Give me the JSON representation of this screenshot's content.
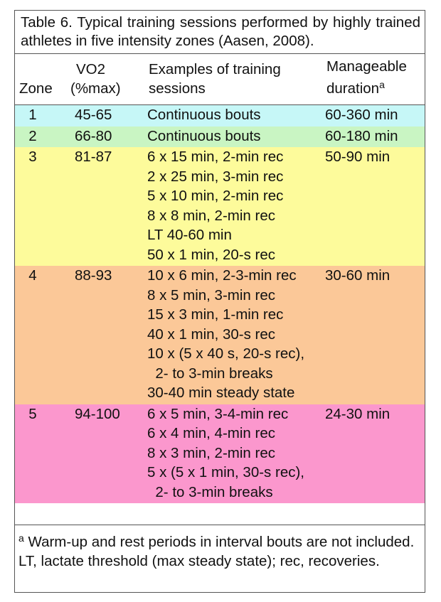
{
  "caption": "Table 6. Typical training sessions performed by highly trained athletes in five intensity zones (Aasen, 2008).",
  "headers": {
    "zone": "Zone",
    "vo2_line1": "VO2",
    "vo2_line2": "(%max)",
    "sessions_line1": "Examples of training",
    "sessions_line2": "sessions",
    "duration_line1": "Manageable",
    "duration_line2": "duration",
    "duration_sup": "a"
  },
  "rows": [
    {
      "zone": "1",
      "vo2": "45-65",
      "color": "#c6f7f7",
      "sessions": [
        "Continuous bouts"
      ],
      "duration": "60-360 min"
    },
    {
      "zone": "2",
      "vo2": "66-80",
      "color": "#c9f5c3",
      "sessions": [
        "Continuous bouts"
      ],
      "duration": "60-180 min"
    },
    {
      "zone": "3",
      "vo2": "81-87",
      "color": "#fdfb9b",
      "sessions": [
        "6 x 15 min, 2-min rec",
        "2 x 25 min, 3-min rec",
        "5 x 10 min, 2-min rec",
        "8 x 8 min, 2-min rec",
        "LT 40-60 min",
        "50 x 1 min, 20-s rec"
      ],
      "duration": "50-90 min"
    },
    {
      "zone": "4",
      "vo2": "88-93",
      "color": "#fbc898",
      "sessions": [
        "10 x 6 min, 2-3-min rec",
        "8 x 5 min, 3-min rec",
        "15 x 3 min, 1-min rec",
        "40 x 1 min, 30-s rec",
        "10 x (5 x 40 s, 20-s rec),",
        "  2- to 3-min breaks",
        "30-40 min steady state"
      ],
      "duration": "30-60 min"
    },
    {
      "zone": "5",
      "vo2": "94-100",
      "color": "#fb97cd",
      "sessions": [
        "6 x 5 min, 3-4-min rec",
        "6 x 4 min, 4-min rec",
        "8 x 3 min, 2-min rec",
        "5 x (5 x 1 min, 30-s rec),",
        "  2- to 3-min breaks"
      ],
      "duration": "24-30 min"
    }
  ],
  "footer": {
    "note_sup": "a",
    "note": " Warm-up and rest periods in interval bouts are not included.",
    "abbrev": "LT, lactate threshold (max steady state); rec, recoveries."
  }
}
